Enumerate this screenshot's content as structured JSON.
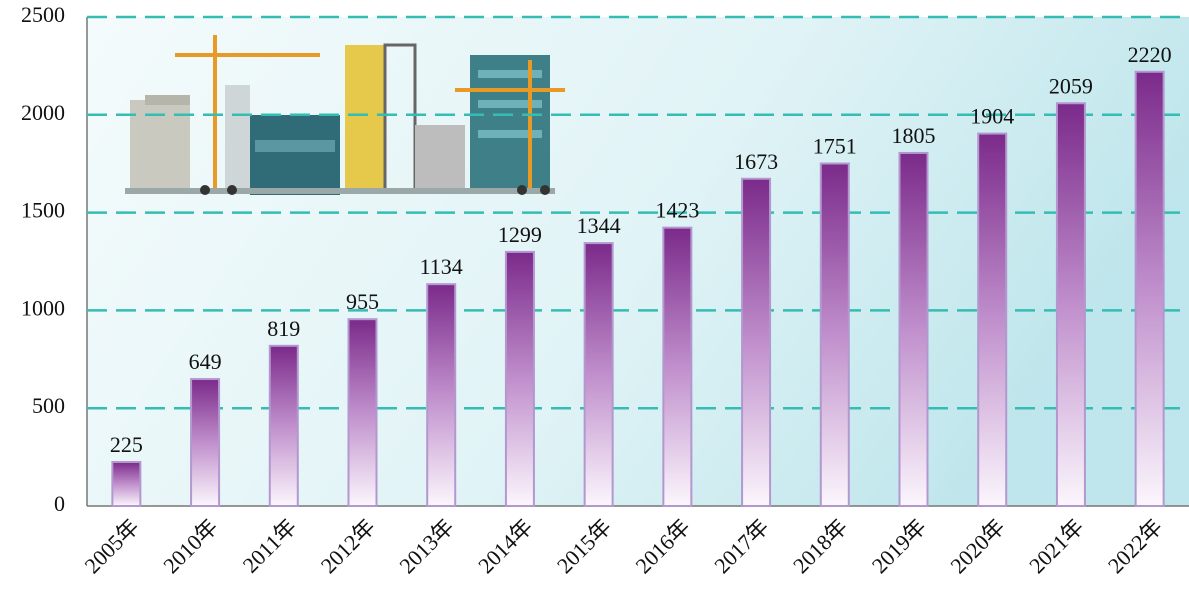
{
  "chart_data": {
    "type": "bar",
    "categories": [
      "2005年",
      "2010年",
      "2011年",
      "2012年",
      "2013年",
      "2014年",
      "2015年",
      "2016年",
      "2017年",
      "2018年",
      "2019年",
      "2020年",
      "2021年",
      "2022年"
    ],
    "values": [
      225,
      649,
      819,
      955,
      1134,
      1299,
      1344,
      1423,
      1673,
      1751,
      1805,
      1904,
      2059,
      2220
    ],
    "color": "#7b2a8a",
    "ylim": [
      0,
      2500
    ],
    "yticks": [
      0,
      500,
      1000,
      1500,
      2000,
      2500
    ],
    "grid": true
  }
}
